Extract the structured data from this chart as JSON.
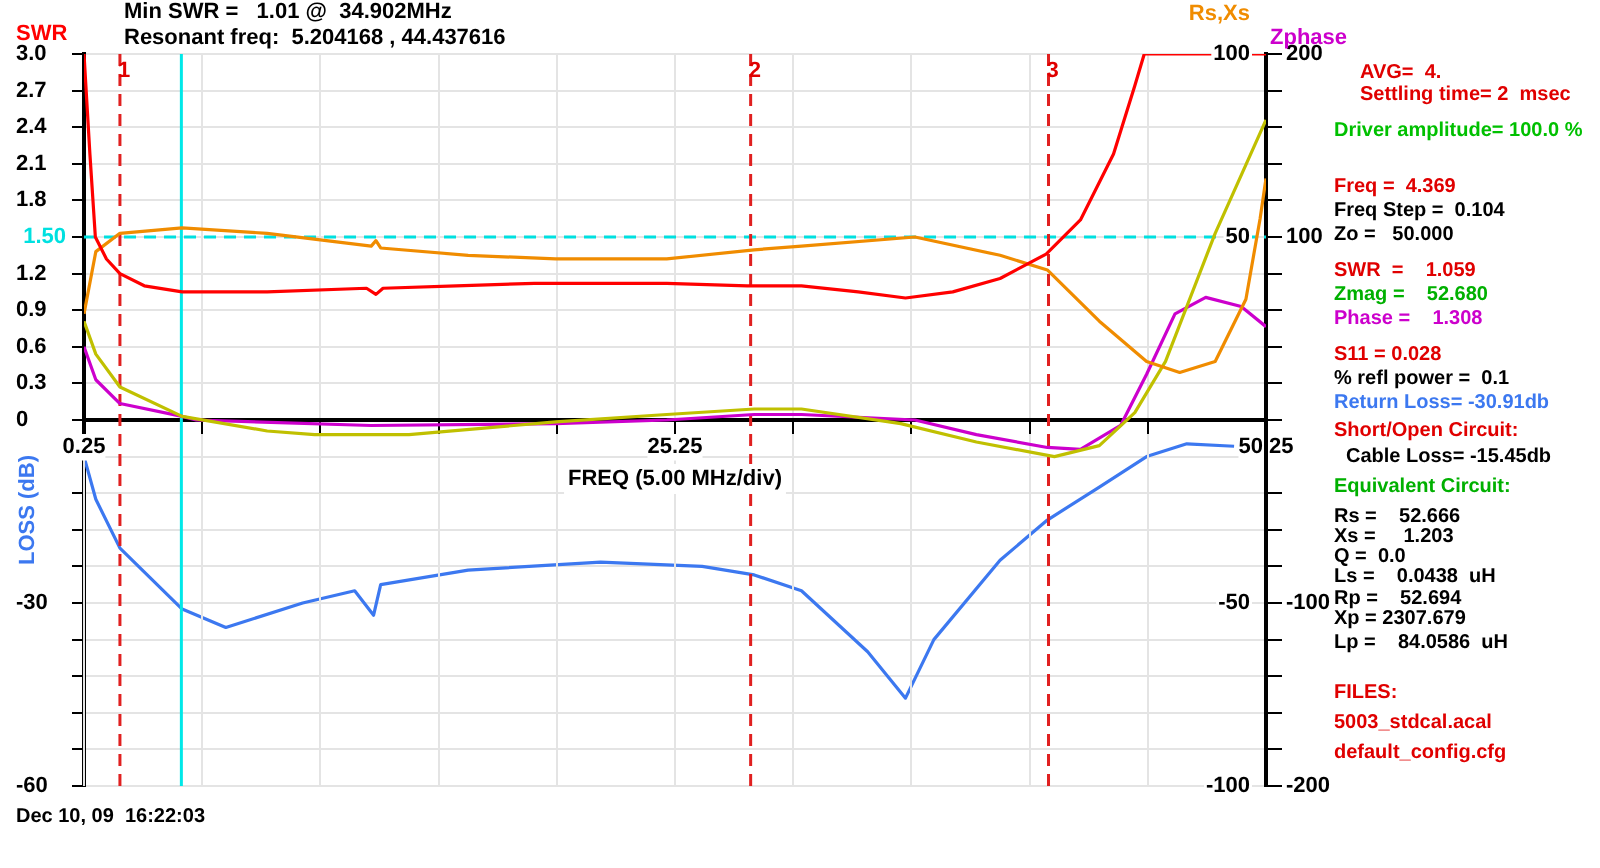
{
  "chart_data": [
    {
      "type": "line",
      "title": "Min SWR =   1.01 @  34.902MHz",
      "subtitle": "Resonant freq:  5.204168 , 44.437616",
      "xlabel": "FREQ (5.00 MHz/div)",
      "ylabel": "SWR",
      "y2label": "Rs,Xs",
      "y3label": "Zphase",
      "marker": "none",
      "grid": true,
      "xlim": [
        0.25,
        50.25
      ],
      "xticks": [
        0.25,
        {
          "value": 5.25,
          "label": null
        },
        {
          "value": 10.25,
          "label": null
        },
        {
          "value": 15.25,
          "label": null
        },
        {
          "value": 20.25,
          "label": null
        },
        25.25,
        {
          "value": 30.25,
          "label": null
        },
        {
          "value": 35.25,
          "label": null
        },
        {
          "value": 40.25,
          "label": null
        },
        {
          "value": 45.25,
          "label": null
        },
        50.25
      ],
      "ylim": [
        0,
        3
      ],
      "yticks": [
        0,
        0.3,
        0.6,
        0.9,
        1.2,
        {
          "value": 1.5,
          "label": null
        },
        1.8,
        2.1,
        2.4,
        2.7,
        {
          "value": 3,
          "label": "3.0"
        }
      ],
      "y2lim": [
        -100,
        100
      ],
      "y2ticks": [
        100,
        50,
        -50,
        -100
      ],
      "y3lim": [
        -200,
        200
      ],
      "y3ticks": [
        200,
        {
          "value": 180,
          "label": null
        },
        {
          "value": 160,
          "label": null
        },
        {
          "value": 140,
          "label": null
        },
        {
          "value": 120,
          "label": null
        },
        100,
        {
          "value": 80,
          "label": null
        },
        {
          "value": 60,
          "label": null
        },
        {
          "value": 40,
          "label": null
        },
        {
          "value": 20,
          "label": null
        },
        {
          "value": 0,
          "label": null
        },
        {
          "value": -20,
          "label": null
        },
        {
          "value": -40,
          "label": null
        },
        {
          "value": -60,
          "label": null
        },
        {
          "value": -80,
          "label": null
        },
        -100,
        {
          "value": -120,
          "label": null
        },
        {
          "value": -140,
          "label": null
        },
        {
          "value": -160,
          "label": null
        },
        {
          "value": -180,
          "label": null
        },
        -200
      ],
      "series": [
        {
          "color": "#ff0000",
          "x": [
            0.25,
            0.5,
            0.73,
            1.2,
            1.77,
            2.8,
            4.4,
            8,
            12.2,
            12.6,
            12.9,
            16,
            19.3,
            24.9,
            28.3,
            30.6,
            33,
            35,
            37,
            39,
            40.95,
            42.4,
            43.8,
            44.7,
            45.1,
            50.25
          ],
          "values": [
            3.0,
            2.18,
            1.5,
            1.32,
            1.2,
            1.1,
            1.05,
            1.05,
            1.08,
            1.03,
            1.08,
            1.1,
            1.12,
            1.12,
            1.1,
            1.1,
            1.05,
            1.0,
            1.05,
            1.16,
            1.36,
            1.64,
            2.18,
            2.74,
            3.0,
            3.0
          ]
        },
        {
          "color": "#f08c00",
          "axis": "y2",
          "x": [
            0.25,
            0.75,
            1.77,
            4.4,
            8,
            12.4,
            12.6,
            12.8,
            16.5,
            20.2,
            24.9,
            28.6,
            30.6,
            35.4,
            39,
            41,
            43.2,
            45.2,
            46.6,
            48.1,
            49.4,
            50,
            50.25
          ],
          "values": [
            29,
            46,
            51,
            52.5,
            51,
            47.5,
            49,
            47,
            45,
            44,
            44,
            46.5,
            47.5,
            50,
            45,
            41,
            27,
            16,
            13,
            16,
            33,
            55,
            66
          ]
        },
        {
          "color": "#c0c000",
          "axis": "y2",
          "x": [
            0.25,
            0.75,
            1.77,
            4.4,
            8,
            10,
            14,
            20.2,
            24.9,
            28.6,
            30.6,
            34.8,
            38,
            41.3,
            43.2,
            44.7,
            46,
            48.1,
            50.25
          ],
          "values": [
            27,
            18,
            9,
            1,
            -3,
            -4,
            -4,
            -0.5,
            1.5,
            3,
            3,
            -1,
            -6,
            -10,
            -7,
            2,
            16,
            51,
            82
          ]
        },
        {
          "color": "#cc00cc",
          "axis": "y3",
          "x": [
            0.25,
            0.75,
            1.77,
            4.4,
            5,
            12.4,
            20.2,
            24.9,
            28.6,
            30.6,
            35.4,
            38,
            41,
            42.4,
            44.1,
            45.2,
            46.4,
            47.7,
            49.2,
            50.25
          ],
          "values": [
            40,
            22,
            9,
            2,
            0,
            -3,
            -2,
            0,
            3,
            3,
            0,
            -8,
            -15,
            -16,
            -3,
            25,
            58,
            67,
            62,
            51
          ]
        }
      ],
      "ref_lines": [
        {
          "axis": "y",
          "value": 1.5,
          "label": "1.50",
          "color": "#00e0e0",
          "line_style": "dashed"
        },
        {
          "axis": "x",
          "value": 4.369,
          "color": "#00e8e8",
          "line_style": "solid"
        },
        {
          "axis": "x",
          "value": 1.77,
          "color": "#e02020",
          "line_style": "dashed"
        },
        {
          "axis": "x",
          "value": 28.45,
          "color": "#e02020",
          "line_style": "dashed"
        },
        {
          "axis": "x",
          "value": 41.05,
          "color": "#e02020",
          "line_style": "dashed"
        }
      ],
      "annotations": [
        "AVG=  4.",
        "Settling time= 2  msec",
        "Driver amplitude= 100.0 %",
        "Freq =  4.369",
        "Freq Step =  0.104",
        "Zo =   50.000",
        "SWR  =    1.059",
        "Zmag =    52.680",
        "Phase =    1.308",
        "S11 = 0.028",
        "% refl power =  0.1",
        "Return Loss= -30.91db",
        "Short/Open Circuit:",
        "Cable Loss= -15.45db",
        "Equivalent Circuit:",
        "Rs =    52.666",
        "Xs =     1.203",
        "Q =  0.0",
        "Ls =    0.0438  uH",
        "Rp =    52.694",
        "Xp = 2307.679",
        "Lp =    84.0586  uH",
        "FILES:",
        "5003_stdcal.acal",
        "default_config.cfg",
        "Dec 10, 09  16:22:03",
        {
          "text": "1",
          "x": 1.77,
          "y": 3.0
        },
        {
          "text": "2",
          "x": 28.45,
          "y": 3.0
        },
        {
          "text": "3",
          "x": 41.05,
          "y": 3.0
        }
      ]
    },
    {
      "type": "line",
      "ylabel": "LOSS (dB)",
      "tick_labels": "y",
      "grid": "y",
      "marker": "none",
      "xlim": [
        0.25,
        50.25
      ],
      "ylim": [
        -60,
        0
      ],
      "yticks": [
        {
          "value": 0,
          "label": null
        },
        {
          "value": -6,
          "label": null
        },
        {
          "value": -12,
          "label": null
        },
        {
          "value": -18,
          "label": null
        },
        {
          "value": -24,
          "label": null
        },
        -30,
        {
          "value": -36,
          "label": null
        },
        {
          "value": -42,
          "label": null
        },
        {
          "value": -48,
          "label": null
        },
        {
          "value": -54,
          "label": null
        },
        -60
      ],
      "series": [
        {
          "color": "#3c78f0",
          "x": [
            0.25,
            0.75,
            1.77,
            4.4,
            6.25,
            9.5,
            11.7,
            12.5,
            12.8,
            16.5,
            22.1,
            26.4,
            28.6,
            30.6,
            33.4,
            35,
            36.2,
            39,
            41,
            43.2,
            45.2,
            46.9,
            48.9
          ],
          "values": [
            -6,
            -13,
            -21,
            -31,
            -34,
            -30,
            -28,
            -32,
            -27,
            -24.6,
            -23.3,
            -24,
            -25.4,
            -28,
            -38,
            -45.6,
            -36,
            -23,
            -16.4,
            -11,
            -6,
            -3.9,
            -4.3
          ]
        }
      ]
    }
  ]
}
